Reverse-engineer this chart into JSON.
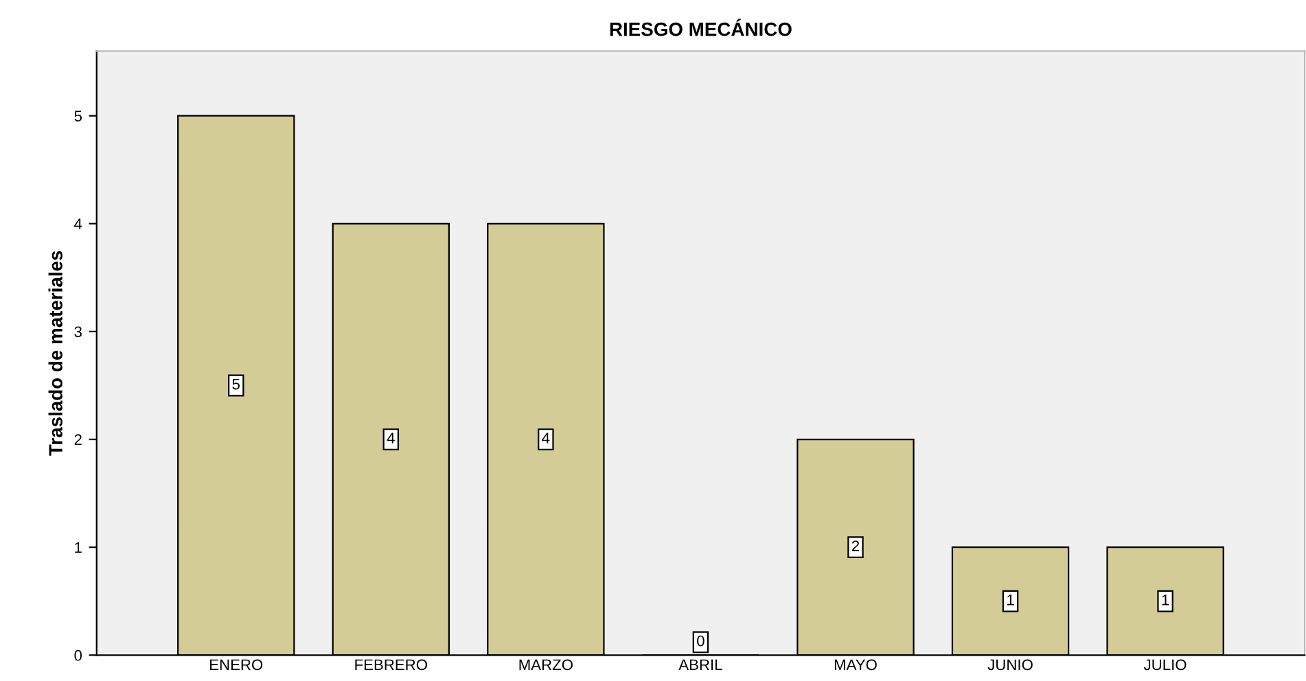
{
  "chart_data": {
    "type": "bar",
    "title": "RIESGO MECÁNICO",
    "ylabel": "Traslado de materiales",
    "categories": [
      "ENERO",
      "FEBRERO",
      "MARZO",
      "ABRIL",
      "MAYO",
      "JUNIO",
      "JULIO"
    ],
    "values": [
      5,
      4,
      4,
      0,
      2,
      1,
      1
    ],
    "color": "#d4cc96",
    "ylim": [
      0,
      5.6
    ],
    "yticks": [
      0,
      1,
      2,
      3,
      4,
      5
    ],
    "grid": false,
    "data_labels": true
  }
}
